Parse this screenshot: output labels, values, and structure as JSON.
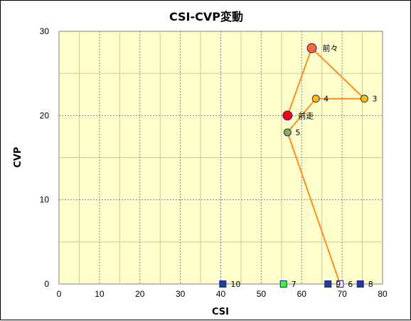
{
  "chart_data": {
    "type": "scatter",
    "title": "CSI-CVP変動",
    "xlabel": "CSI",
    "ylabel": "CVP",
    "xlim": [
      0,
      80
    ],
    "ylim": [
      0,
      30
    ],
    "xticks": [
      0,
      10,
      20,
      30,
      40,
      50,
      60,
      70,
      80
    ],
    "yticks": [
      0,
      10,
      20,
      30
    ],
    "grid": true,
    "legend": "none",
    "colors": {
      "plot_background": "#ffffcc",
      "line": "#ff8c1a",
      "major_grid": "#808080",
      "minor_grid": "#c8c8a0",
      "marker_edge": "#1f1f9f",
      "circle_fill": "#ffc000",
      "latest_fill": "#ff0000",
      "previous_fill": "#ff6a2a",
      "race5_fill": "#92b040",
      "square_dark": "#1f3f8f",
      "square_green": "#33ff33",
      "square_blank": "#ffffff"
    },
    "connected_points": [
      {
        "label": "前走",
        "x": 56.5,
        "y": 20,
        "shape": "circle",
        "fill": "latest_fill",
        "size": "large"
      },
      {
        "label": "前々",
        "x": 62.5,
        "y": 28,
        "shape": "circle",
        "fill": "previous_fill",
        "size": "large"
      },
      {
        "label": "3",
        "x": 75.5,
        "y": 22,
        "shape": "circle",
        "fill": "circle_fill",
        "size": "normal"
      },
      {
        "label": "4",
        "x": 63.5,
        "y": 22,
        "shape": "circle",
        "fill": "circle_fill",
        "size": "normal"
      },
      {
        "label": "5",
        "x": 56.5,
        "y": 18,
        "shape": "circle",
        "fill": "race5_fill",
        "size": "normal"
      },
      {
        "label": "6",
        "x": 69.5,
        "y": 0,
        "shape": "square",
        "fill": "square_blank",
        "size": "normal"
      }
    ],
    "other_points": [
      {
        "label": "7",
        "x": 55.5,
        "y": 0,
        "shape": "square",
        "fill": "square_green",
        "size": "normal"
      },
      {
        "label": "8",
        "x": 74.5,
        "y": 0,
        "shape": "square",
        "fill": "square_dark",
        "size": "normal"
      },
      {
        "label": "9",
        "x": 66.5,
        "y": 0,
        "shape": "square",
        "fill": "square_dark",
        "size": "normal"
      },
      {
        "label": "10",
        "x": 40.5,
        "y": 0,
        "shape": "square",
        "fill": "square_dark",
        "size": "normal"
      }
    ]
  }
}
